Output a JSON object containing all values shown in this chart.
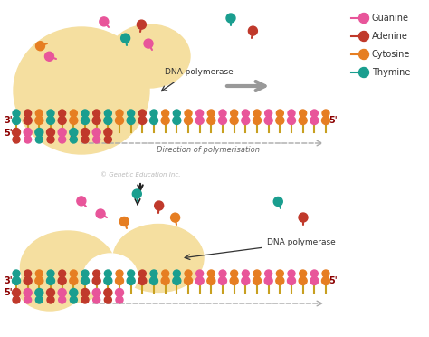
{
  "bg_color": "#ffffff",
  "blob_color": "#f5dfa0",
  "guanine_color": "#e8559a",
  "adenine_color": "#c0392b",
  "cytosine_color": "#e67e22",
  "thymine_color": "#1a9e8f",
  "pink_color": "#e8559a",
  "connector_color": "#c8a020",
  "arrow_color": "#888888",
  "dashed_color": "#aaaaaa",
  "label_color": "#333333",
  "legend_labels": [
    "Guanine",
    "Adenine",
    "Cytosine",
    "Thymine"
  ],
  "legend_colors": [
    "#e8559a",
    "#c0392b",
    "#e67e22",
    "#1a9e8f"
  ],
  "dna_poly_label": "DNA polymerase",
  "direction_label": "Direction of polymerisation",
  "copyright": "© Genetic Education Inc.",
  "fig_width": 4.74,
  "fig_height": 3.72,
  "dpi": 100
}
